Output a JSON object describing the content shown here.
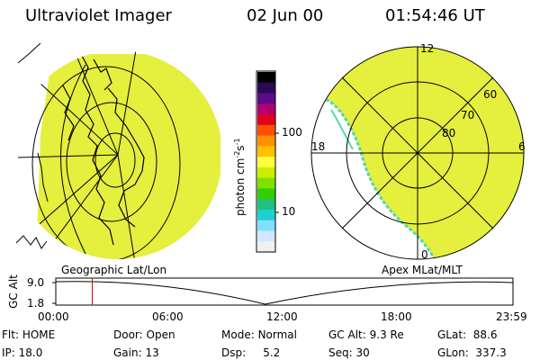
{
  "header": {
    "title": "Ultraviolet Imager",
    "date": "02 Jun 00",
    "time": "01:54:46 UT"
  },
  "colorbar": {
    "unit_label": "photon cm",
    "unit_exp_1": "-2",
    "unit_mid": "s",
    "unit_exp_2": "-1",
    "ticks": [
      "100",
      "10"
    ],
    "colors": [
      "#000000",
      "#2a0a55",
      "#5b0a8a",
      "#b00070",
      "#e00020",
      "#ff5000",
      "#ff9000",
      "#ffc000",
      "#ffff40",
      "#c8f000",
      "#80e000",
      "#30d000",
      "#20c080",
      "#20d0d0",
      "#80e0ff",
      "#d0e8ff",
      "#f0f0f0"
    ]
  },
  "left_panel": {
    "caption": "Geographic Lat/Lon"
  },
  "right_panel": {
    "caption": "Apex MLat/MLT",
    "mlt_labels": {
      "top": "12",
      "left": "18",
      "right": "6",
      "bottom": "0"
    },
    "mlat_labels": [
      "60",
      "70",
      "80"
    ]
  },
  "timeline": {
    "y_label": "GC Alt",
    "y_ticks": [
      "9.0",
      "1.8"
    ],
    "x_ticks": [
      "00:00",
      "06:00",
      "12:00",
      "18:00",
      "23:59"
    ],
    "marker_time": "01:54:46",
    "marker_color": "#e00000"
  },
  "info": {
    "row1": [
      {
        "key": "Flt:",
        "value": "HOME"
      },
      {
        "key": "Door:",
        "value": "Open"
      },
      {
        "key": "Mode:",
        "value": "Normal"
      },
      {
        "key": "GC Alt:",
        "value": "9.3 Re"
      },
      {
        "key": "GLat:",
        "value": "88.6"
      }
    ],
    "row2": [
      {
        "key": "IP:",
        "value": "18.0"
      },
      {
        "key": "Gain:",
        "value": "13"
      },
      {
        "key": "Dsp:",
        "value": "5.2"
      },
      {
        "key": "Seq:",
        "value": "30"
      },
      {
        "key": "GLon:",
        "value": "337.3"
      }
    ]
  },
  "colors": {
    "image_fill": "#e4ef3e",
    "contour": "#58d4b4",
    "text": "#000000"
  }
}
